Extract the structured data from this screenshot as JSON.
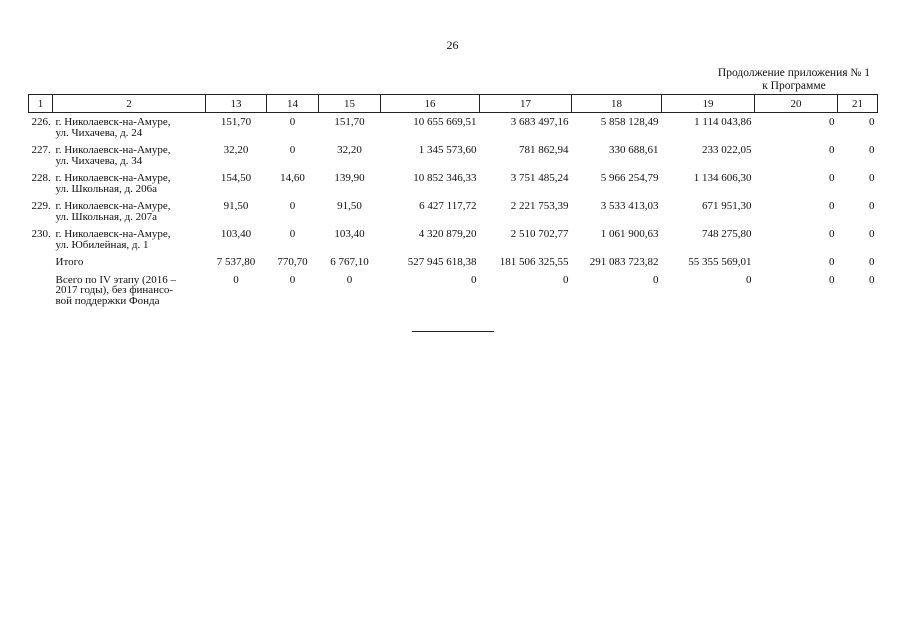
{
  "page": {
    "number": "26",
    "continuation_line1": "Продолжение приложения № 1",
    "continuation_line2": "к Программе"
  },
  "table": {
    "headers": [
      "1",
      "2",
      "13",
      "14",
      "15",
      "16",
      "17",
      "18",
      "19",
      "20",
      "21"
    ],
    "rows": [
      {
        "idx": "226.",
        "addr": "г. Николаевск-на-Амуре,\nул. Чихачева, д. 24",
        "c13": "151,70",
        "c14": "0",
        "c15": "151,70",
        "c16": "10 655 669,51",
        "c17": "3 683 497,16",
        "c18": "5 858 128,49",
        "c19": "1 114 043,86",
        "c20": "0",
        "c21": "0"
      },
      {
        "idx": "227.",
        "addr": "г. Николаевск-на-Амуре,\nул. Чихачева, д. 34",
        "c13": "32,20",
        "c14": "0",
        "c15": "32,20",
        "c16": "1 345 573,60",
        "c17": "781 862,94",
        "c18": "330 688,61",
        "c19": "233 022,05",
        "c20": "0",
        "c21": "0"
      },
      {
        "idx": "228.",
        "addr": "г. Николаевск-на-Амуре,\nул. Школьная, д. 206а",
        "c13": "154,50",
        "c14": "14,60",
        "c15": "139,90",
        "c16": "10 852 346,33",
        "c17": "3 751 485,24",
        "c18": "5 966 254,79",
        "c19": "1 134 606,30",
        "c20": "0",
        "c21": "0"
      },
      {
        "idx": "229.",
        "addr": "г. Николаевск-на-Амуре,\nул. Школьная, д. 207а",
        "c13": "91,50",
        "c14": "0",
        "c15": "91,50",
        "c16": "6 427 117,72",
        "c17": "2 221 753,39",
        "c18": "3 533 413,03",
        "c19": "671 951,30",
        "c20": "0",
        "c21": "0"
      },
      {
        "idx": "230.",
        "addr": "г. Николаевск-на-Амуре,\nул. Юбилейная, д. 1",
        "c13": "103,40",
        "c14": "0",
        "c15": "103,40",
        "c16": "4 320 879,20",
        "c17": "2 510 702,77",
        "c18": "1 061 900,63",
        "c19": "748 275,80",
        "c20": "0",
        "c21": "0"
      },
      {
        "idx": "",
        "addr": "Итого",
        "c13": "7 537,80",
        "c14": "770,70",
        "c15": "6 767,10",
        "c16": "527 945 618,38",
        "c17": "181 506 325,55",
        "c18": "291 083 723,82",
        "c19": "55 355 569,01",
        "c20": "0",
        "c21": "0"
      },
      {
        "idx": "",
        "addr": "Всего по IV этапу (2016 –\n2017 годы), без финансо-\nвой поддержки Фонда",
        "c13": "0",
        "c14": "0",
        "c15": "0",
        "c16": "0",
        "c17": "0",
        "c18": "0",
        "c19": "0",
        "c20": "0",
        "c21": "0"
      }
    ]
  }
}
